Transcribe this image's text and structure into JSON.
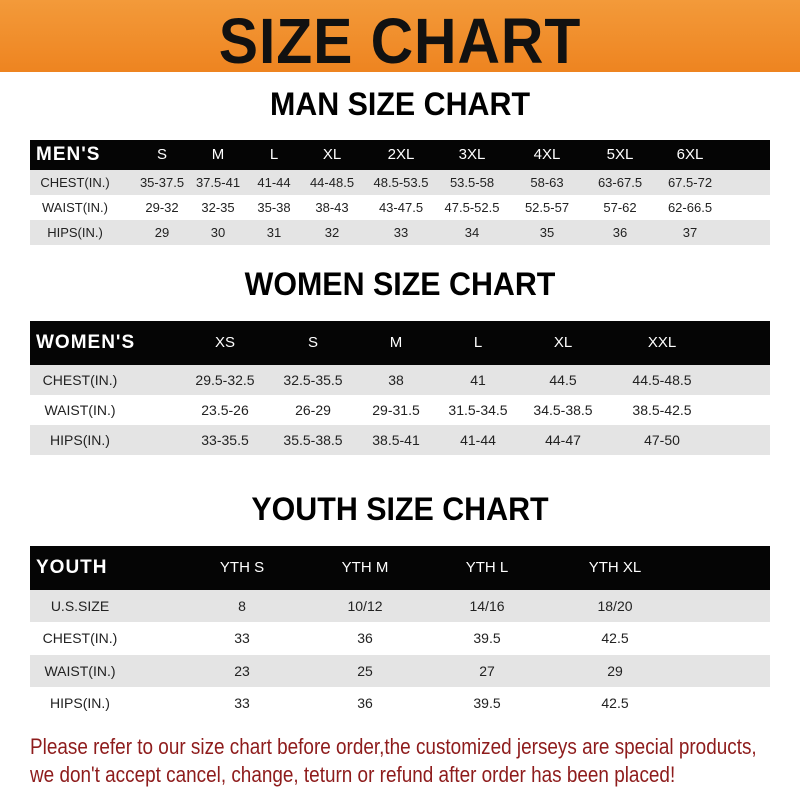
{
  "title": "SIZE CHART",
  "colors": {
    "banner": "#ee8420",
    "header_row": "#050505",
    "note": "#8e1c1c"
  },
  "men": {
    "heading": "MAN SIZE CHART",
    "header": [
      "MEN'S",
      "S",
      "M",
      "L",
      "XL",
      "2XL",
      "3XL",
      "4XL",
      "5XL",
      "6XL"
    ],
    "rows": [
      [
        "CHEST(IN.)",
        "35-37.5",
        "37.5-41",
        "41-44",
        "44-48.5",
        "48.5-53.5",
        "53.5-58",
        "58-63",
        "63-67.5",
        "67.5-72"
      ],
      [
        "WAIST(IN.)",
        "29-32",
        "32-35",
        "35-38",
        "38-43",
        "43-47.5",
        "47.5-52.5",
        "52.5-57",
        "57-62",
        "62-66.5"
      ],
      [
        "HIPS(IN.)",
        "29",
        "30",
        "31",
        "32",
        "33",
        "34",
        "35",
        "36",
        "37"
      ]
    ]
  },
  "women": {
    "heading": "WOMEN SIZE CHART",
    "header": [
      "WOMEN'S",
      "XS",
      "S",
      "M",
      "L",
      "XL",
      "XXL"
    ],
    "rows": [
      [
        "CHEST(IN.)",
        "29.5-32.5",
        "32.5-35.5",
        "38",
        "41",
        "44.5",
        "44.5-48.5"
      ],
      [
        "WAIST(IN.)",
        "23.5-26",
        "26-29",
        "29-31.5",
        "31.5-34.5",
        "34.5-38.5",
        "38.5-42.5"
      ],
      [
        "HIPS(IN.)",
        "33-35.5",
        "35.5-38.5",
        "38.5-41",
        "41-44",
        "44-47",
        "47-50"
      ]
    ]
  },
  "youth": {
    "heading": "YOUTH SIZE CHART",
    "header": [
      "YOUTH",
      "YTH S",
      "YTH M",
      "YTH L",
      "YTH XL"
    ],
    "rows": [
      [
        "U.S.SIZE",
        "8",
        "10/12",
        "14/16",
        "18/20"
      ],
      [
        "CHEST(IN.)",
        "33",
        "36",
        "39.5",
        "42.5"
      ],
      [
        "WAIST(IN.)",
        "23",
        "25",
        "27",
        "29"
      ],
      [
        "HIPS(IN.)",
        "33",
        "36",
        "39.5",
        "42.5"
      ]
    ]
  },
  "note": {
    "line1": "Please refer to our size chart before order,the customized jerseys are special products,",
    "line2": "we don't accept cancel, change, teturn or refund after order has been placed!"
  }
}
